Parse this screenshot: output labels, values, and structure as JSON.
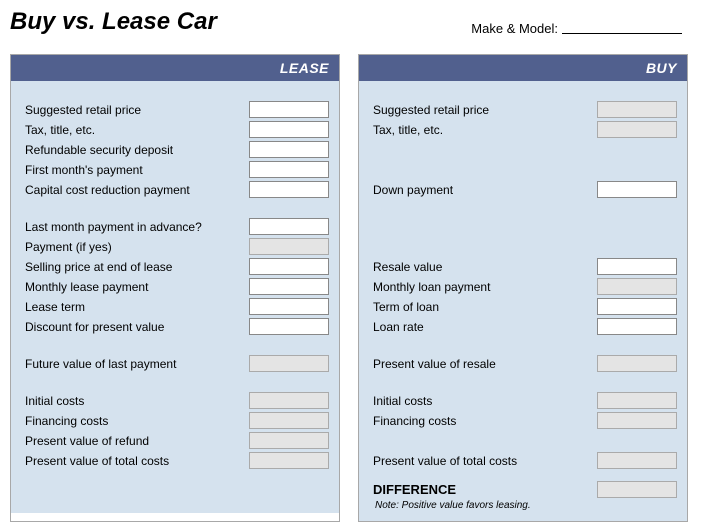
{
  "title": "Buy vs. Lease Car",
  "makeModel": {
    "label": "Make & Model:",
    "value": ""
  },
  "colors": {
    "header_bg": "#51608e",
    "panel_bg": "#d5e2ee",
    "input_bg": "#ffffff",
    "calc_bg": "#e4e4e4",
    "border": "#a8a8a8"
  },
  "lease": {
    "header": "LEASE",
    "rows": [
      {
        "label": "Suggested retail price",
        "type": "input"
      },
      {
        "label": "Tax, title, etc.",
        "type": "input"
      },
      {
        "label": "Refundable security deposit",
        "type": "input"
      },
      {
        "label": "First month's payment",
        "type": "input"
      },
      {
        "label": "Capital cost reduction payment",
        "type": "input"
      }
    ],
    "rows2": [
      {
        "label": "Last month payment in advance?",
        "type": "input"
      },
      {
        "label": "Payment (if yes)",
        "type": "calc"
      },
      {
        "label": "Selling price at end of lease",
        "type": "input"
      },
      {
        "label": "Monthly lease payment",
        "type": "input"
      },
      {
        "label": "Lease term",
        "type": "input"
      },
      {
        "label": "Discount for present value",
        "type": "input"
      }
    ],
    "rows3": [
      {
        "label": "Future value of last payment",
        "type": "calc"
      }
    ],
    "rows4": [
      {
        "label": "Initial costs",
        "type": "calc"
      },
      {
        "label": "Financing costs",
        "type": "calc"
      },
      {
        "label": "Present value of refund",
        "type": "calc"
      },
      {
        "label": "Present value of total costs",
        "type": "calc"
      }
    ]
  },
  "buy": {
    "header": "BUY",
    "rows": [
      {
        "label": "Suggested retail price",
        "type": "calc"
      },
      {
        "label": "Tax, title, etc.",
        "type": "calc"
      },
      {
        "label": "",
        "type": "none"
      },
      {
        "label": "",
        "type": "none"
      },
      {
        "label": "Down payment",
        "type": "input"
      }
    ],
    "rows2": [
      {
        "label": "",
        "type": "none"
      },
      {
        "label": "",
        "type": "none"
      },
      {
        "label": "Resale value",
        "type": "input"
      },
      {
        "label": "Monthly loan payment",
        "type": "calc"
      },
      {
        "label": "Term of loan",
        "type": "input"
      },
      {
        "label": "Loan rate",
        "type": "input"
      }
    ],
    "rows3": [
      {
        "label": "Present value of resale",
        "type": "calc"
      }
    ],
    "rows4": [
      {
        "label": "Initial costs",
        "type": "calc"
      },
      {
        "label": "Financing costs",
        "type": "calc"
      },
      {
        "label": "",
        "type": "none"
      },
      {
        "label": "Present value of total costs",
        "type": "calc"
      }
    ],
    "difference": {
      "label": "DIFFERENCE",
      "type": "calc"
    },
    "note": "Note: Positive value favors leasing."
  }
}
